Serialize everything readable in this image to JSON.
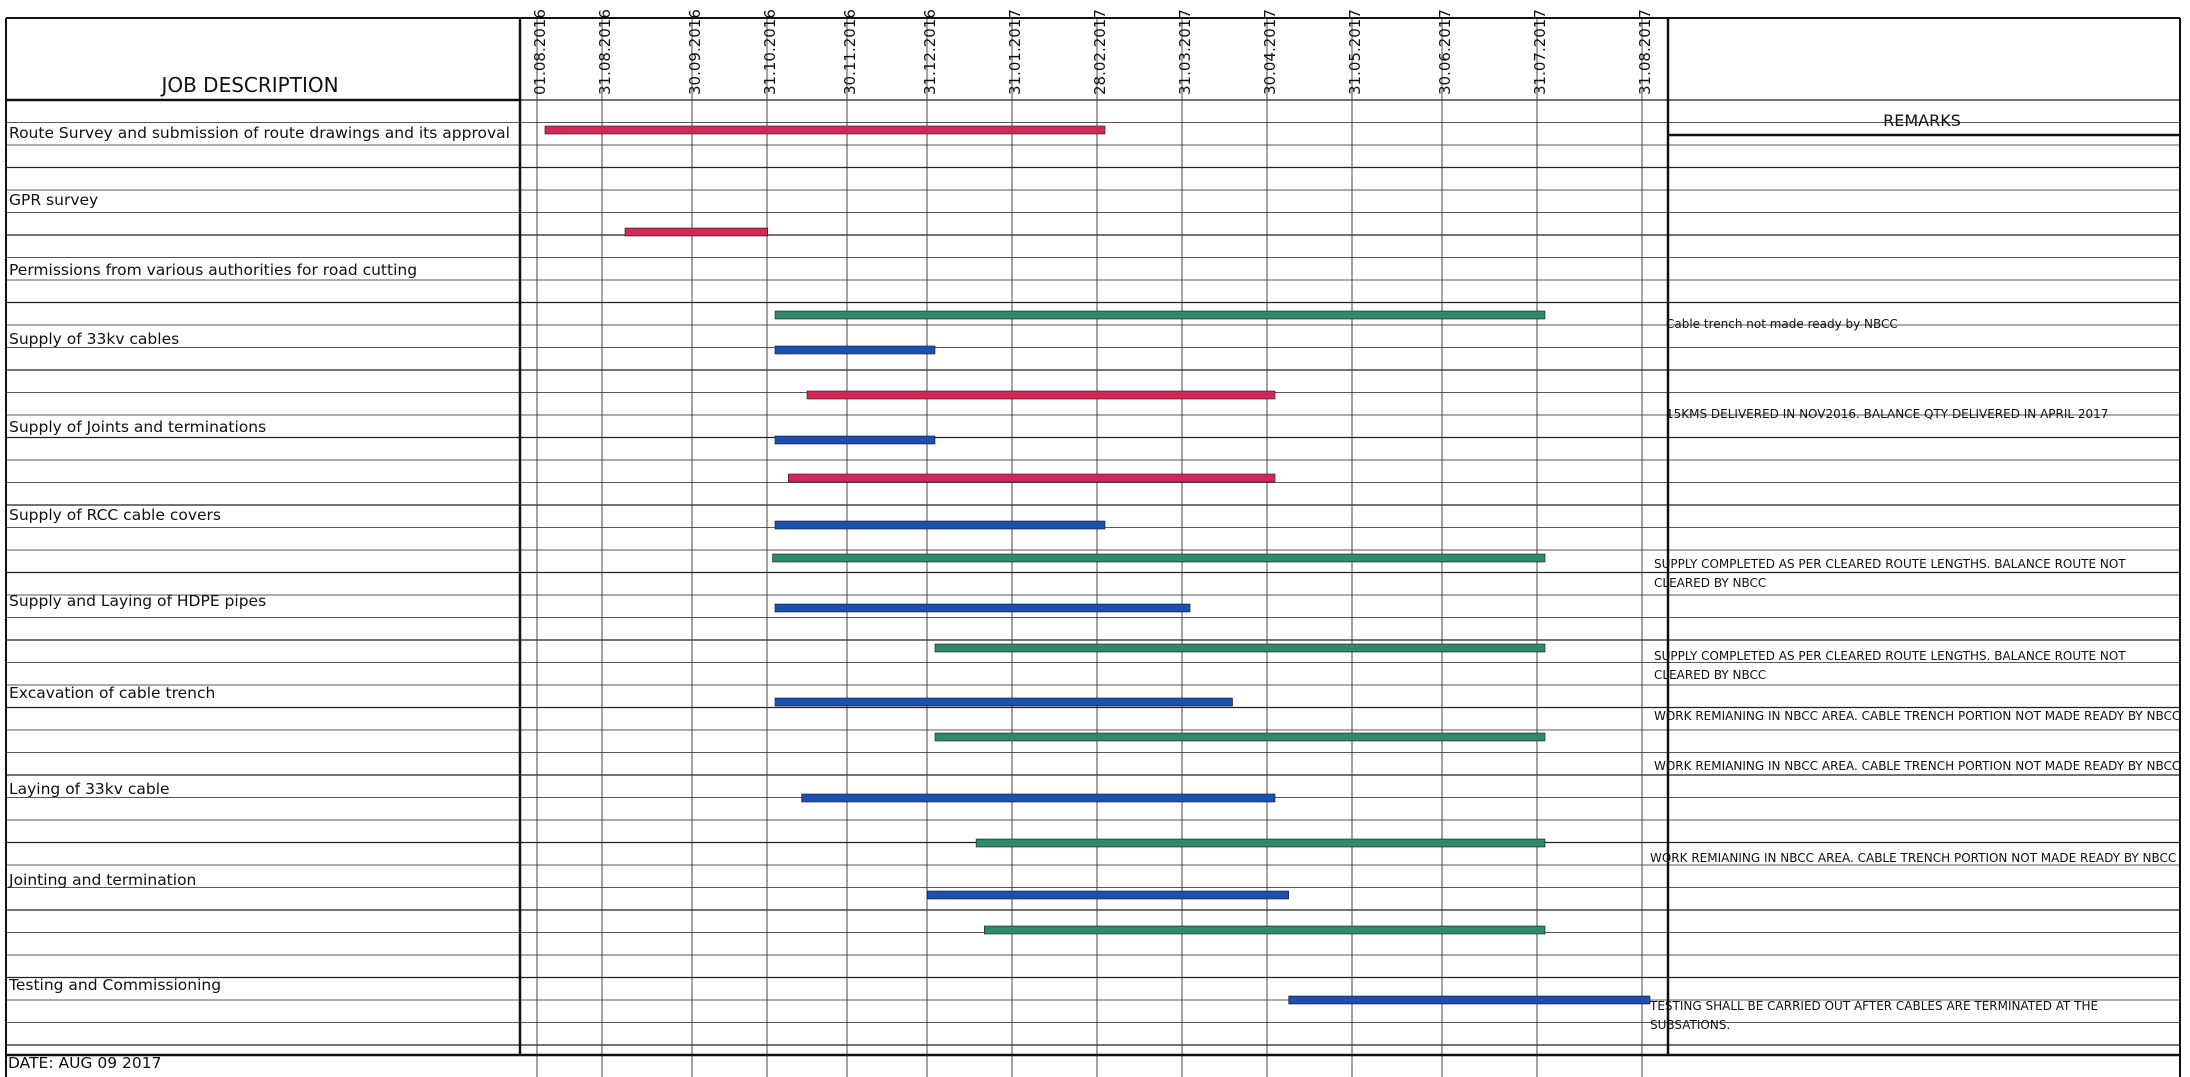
{
  "chart_data": {
    "type": "gantt",
    "headers": {
      "job_description": "JOB DESCRIPTION",
      "remarks": "REMARKS"
    },
    "date_ticks": [
      "01.08.2016",
      "31.08.2016",
      "30.09.2016",
      "31.10.2016",
      "30.11.2016",
      "31.12.2016",
      "31.01.2017",
      "28.02.2017",
      "31.03.2017",
      "30.04.2017",
      "31.05.2017",
      "30.06.2017",
      "31.07.2017",
      "31.08.2017"
    ],
    "tasks": [
      {
        "name": "Route Survey and submission of route drawings and its approval",
        "bars": [
          {
            "start": "2016-08-01",
            "end": "2017-02-28",
            "color": "#d4285a"
          }
        ]
      },
      {
        "name": "GPR survey",
        "bars": [
          {
            "start": "2016-09-05",
            "end": "2016-10-28",
            "color": "#d4285a"
          }
        ]
      },
      {
        "name": "Permissions from various authorities for road cutting",
        "bars": [
          {
            "start": "2016-10-31",
            "end": "2017-07-31",
            "color": "#2e8a6a"
          }
        ],
        "remark_lines": [
          "Cable trench not made ready by NBCC"
        ]
      },
      {
        "name": "Supply of 33kv cables",
        "bars": [
          {
            "start": "2016-10-31",
            "end": "2016-12-31",
            "color": "#1b4fb0"
          },
          {
            "start": "2016-11-12",
            "end": "2017-04-30",
            "color": "#d4285a"
          }
        ],
        "remark_lines": [
          "15KMS DELIVERED IN NOV2016. BALANCE QTY DELIVERED IN  APRIL 2017"
        ]
      },
      {
        "name": "Supply of Joints and terminations",
        "bars": [
          {
            "start": "2016-10-31",
            "end": "2016-12-31",
            "color": "#1b4fb0"
          },
          {
            "start": "2016-11-05",
            "end": "2017-04-30",
            "color": "#d4285a"
          }
        ]
      },
      {
        "name": "Supply of RCC cable covers",
        "bars": [
          {
            "start": "2016-10-31",
            "end": "2017-02-28",
            "color": "#1b4fb0"
          },
          {
            "start": "2016-10-30",
            "end": "2017-07-31",
            "color": "#2e8a6a"
          }
        ],
        "remark_lines": [
          "SUPPLY COMPLETED AS PER CLEARED ROUTE LENGTHS. BALANCE ROUTE NOT",
          "CLEARED BY NBCC"
        ]
      },
      {
        "name": "Supply and Laying of HDPE pipes",
        "bars": [
          {
            "start": "2016-10-31",
            "end": "2017-03-31",
            "color": "#1b4fb0"
          },
          {
            "start": "2016-12-31",
            "end": "2017-07-31",
            "color": "#2e8a6a"
          }
        ],
        "remark_lines": [
          "SUPPLY COMPLETED AS PER CLEARED ROUTE LENGTHS. BALANCE ROUTE NOT",
          "CLEARED BY NBCC"
        ]
      },
      {
        "name": "Excavation of cable trench",
        "bars": [
          {
            "start": "2016-10-31",
            "end": "2017-04-15",
            "color": "#1b4fb0"
          },
          {
            "start": "2016-12-31",
            "end": "2017-07-31",
            "color": "#2e8a6a"
          }
        ],
        "remark_lines": [
          "WORK REMIANING  IN NBCC AREA. CABLE TRENCH PORTION NOT MADE READY BY NBCC"
        ]
      },
      {
        "name": "Laying of 33kv cable",
        "bars": [
          {
            "start": "2016-11-10",
            "end": "2017-04-30",
            "color": "#1b4fb0"
          },
          {
            "start": "2017-01-15",
            "end": "2017-07-31",
            "color": "#2e8a6a"
          }
        ],
        "remark_lines": [
          "WORK REMIANING  IN NBCC AREA. CABLE TRENCH PORTION NOT MADE READY BY NBCC"
        ]
      },
      {
        "name": "Jointing and termination",
        "bars": [
          {
            "start": "2016-12-28",
            "end": "2017-05-05",
            "color": "#1b4fb0"
          },
          {
            "start": "2017-01-18",
            "end": "2017-07-31",
            "color": "#2e8a6a"
          }
        ],
        "remark_lines": [
          "WORK REMIANING  IN NBCC AREA. CABLE TRENCH PORTION NOT MADE READY BY NBCC"
        ]
      },
      {
        "name": "Testing and Commissioning",
        "bars": [
          {
            "start": "2017-05-05",
            "end": "2017-08-31",
            "color": "#1b4fb0"
          }
        ],
        "remark_lines": [
          "TESTING SHALL BE CARRIED OUT AFTER CABLES ARE TERMINATED AT THE",
          "SUBSATIONS."
        ]
      }
    ],
    "footer_date": "DATE: AUG 09 2017"
  }
}
